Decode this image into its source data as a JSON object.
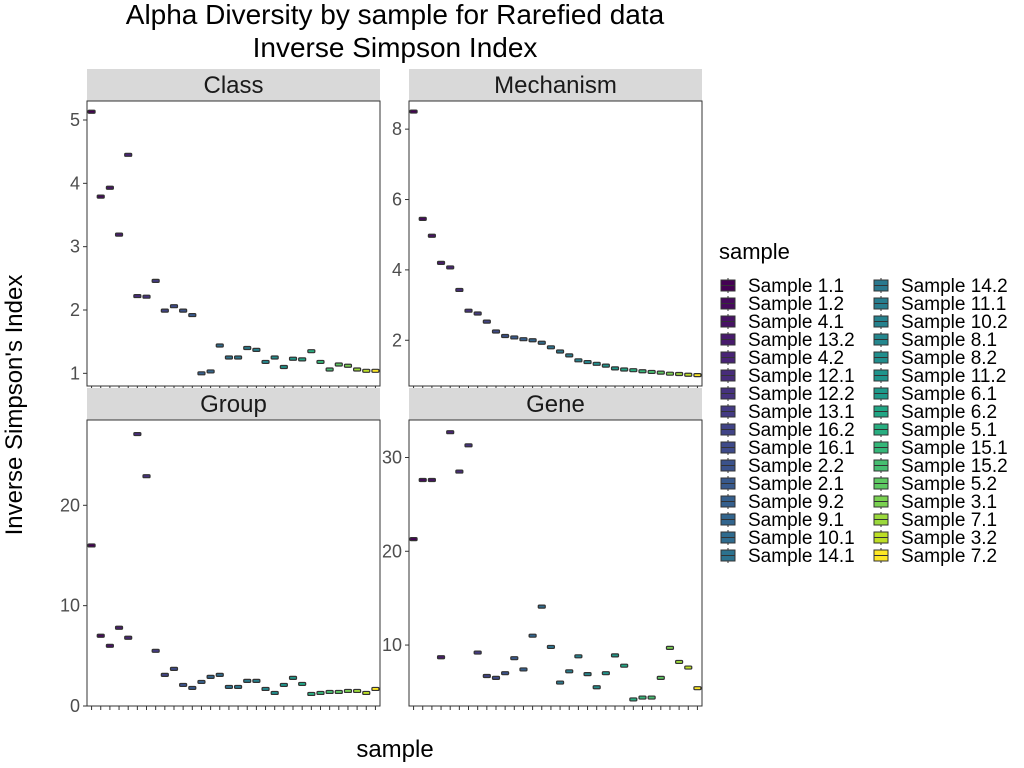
{
  "chart_data": {
    "type": "boxplot",
    "title": "Alpha Diversity by sample for Rarefied data",
    "subtitle": "Inverse Simpson Index",
    "xlabel": "sample",
    "ylabel": "Inverse Simpson's Index",
    "legend_title": "sample",
    "legend_placement": "right",
    "grid": false,
    "samples": [
      "Sample 1.1",
      "Sample 1.2",
      "Sample 4.1",
      "Sample 13.2",
      "Sample 4.2",
      "Sample 12.1",
      "Sample 12.2",
      "Sample 13.1",
      "Sample 16.2",
      "Sample 16.1",
      "Sample 2.2",
      "Sample 2.1",
      "Sample 9.2",
      "Sample 9.1",
      "Sample 10.1",
      "Sample 14.1",
      "Sample 14.2",
      "Sample 11.1",
      "Sample 10.2",
      "Sample 8.1",
      "Sample 8.2",
      "Sample 11.2",
      "Sample 6.1",
      "Sample 6.2",
      "Sample 5.1",
      "Sample 15.1",
      "Sample 15.2",
      "Sample 5.2",
      "Sample 3.1",
      "Sample 7.1",
      "Sample 3.2",
      "Sample 7.2"
    ],
    "colors": [
      "#440154",
      "#460A5D",
      "#471365",
      "#481B6D",
      "#482475",
      "#472C7A",
      "#46337E",
      "#443B84",
      "#414487",
      "#3E4A89",
      "#3B528B",
      "#38598C",
      "#355F8D",
      "#32658E",
      "#2F6B8E",
      "#2C728E",
      "#2A788E",
      "#287D8E",
      "#26828E",
      "#24878E",
      "#218E8D",
      "#1F948C",
      "#1F998A",
      "#21A685",
      "#28AE80",
      "#35B779",
      "#46BE71",
      "#5EC962",
      "#7AD151",
      "#9BD93C",
      "#BDDF26",
      "#FDE725"
    ],
    "panels": [
      {
        "name": "Class",
        "ylim": [
          0.8,
          5.3
        ],
        "yticks": [
          1,
          2,
          3,
          4,
          5
        ],
        "values": [
          5.13,
          3.79,
          3.93,
          3.19,
          4.45,
          2.22,
          2.21,
          2.46,
          1.99,
          2.06,
          1.99,
          1.92,
          1.0,
          1.03,
          1.44,
          1.25,
          1.25,
          1.4,
          1.37,
          1.18,
          1.25,
          1.1,
          1.23,
          1.22,
          1.35,
          1.18,
          1.06,
          1.14,
          1.12,
          1.06,
          1.04,
          1.04
        ]
      },
      {
        "name": "Mechanism",
        "ylim": [
          0.7,
          8.8
        ],
        "yticks": [
          2,
          4,
          6,
          8
        ],
        "values": [
          8.5,
          5.45,
          4.97,
          4.2,
          4.07,
          3.43,
          2.84,
          2.76,
          2.53,
          2.25,
          2.12,
          2.08,
          2.03,
          2.0,
          1.93,
          1.8,
          1.68,
          1.57,
          1.43,
          1.38,
          1.33,
          1.28,
          1.2,
          1.17,
          1.15,
          1.12,
          1.1,
          1.08,
          1.05,
          1.04,
          1.02,
          1.01
        ]
      },
      {
        "name": "Group",
        "ylim": [
          0,
          28.5
        ],
        "yticks": [
          0,
          10,
          20
        ],
        "values": [
          16.0,
          7.0,
          6.0,
          7.8,
          6.8,
          27.1,
          22.9,
          5.5,
          3.1,
          3.7,
          2.1,
          1.8,
          2.4,
          2.9,
          3.1,
          1.9,
          1.9,
          2.5,
          2.5,
          1.7,
          1.3,
          2.1,
          2.8,
          2.2,
          1.2,
          1.3,
          1.4,
          1.4,
          1.5,
          1.5,
          1.3,
          1.7
        ]
      },
      {
        "name": "Gene",
        "ylim": [
          3.5,
          34.0
        ],
        "yticks": [
          10,
          20,
          30
        ],
        "values": [
          21.3,
          27.6,
          27.6,
          8.7,
          32.7,
          28.5,
          31.3,
          9.2,
          6.7,
          6.5,
          7.0,
          8.6,
          7.4,
          11.0,
          14.1,
          9.8,
          6.0,
          7.2,
          8.8,
          6.9,
          5.5,
          7.0,
          8.9,
          7.8,
          4.2,
          4.4,
          4.4,
          6.5,
          9.7,
          8.2,
          7.6,
          5.4
        ]
      }
    ]
  }
}
